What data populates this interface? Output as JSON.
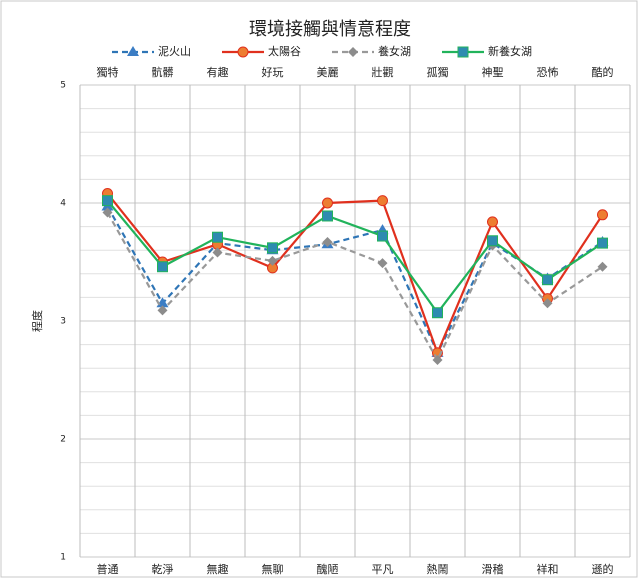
{
  "chart_data": {
    "type": "line",
    "title": "環境接觸與情意程度",
    "y_label": "程度",
    "categories": [
      "普通",
      "乾淨",
      "無趣",
      "無聊",
      "醜陋",
      "平凡",
      "熱鬧",
      "滑稽",
      "祥和",
      "遜的"
    ],
    "top_categories": [
      "獨特",
      "骯髒",
      "有趣",
      "好玩",
      "美麗",
      "壯觀",
      "孤獨",
      "神聖",
      "恐怖",
      "酷的"
    ],
    "ylim": [
      1,
      5
    ],
    "yticks": [
      1,
      2,
      3,
      4,
      5
    ],
    "minor_yticks": [
      1.2,
      1.4,
      1.6,
      1.8,
      2.2,
      2.4,
      2.6,
      2.8,
      3.2,
      3.4,
      3.6,
      3.8,
      4.2,
      4.4,
      4.6,
      4.8
    ],
    "grid": true,
    "series": [
      {
        "name": "泥火山",
        "color": "#2e75b6",
        "dash": true,
        "marker": "triangle",
        "values": [
          3.97,
          3.15,
          3.66,
          3.6,
          3.65,
          3.77,
          2.73,
          3.66,
          3.36,
          3.67
        ]
      },
      {
        "name": "太陽谷",
        "color": "#e0301e",
        "dash": false,
        "marker": "circle",
        "values": [
          4.08,
          3.5,
          3.65,
          3.45,
          4.0,
          4.02,
          2.73,
          3.84,
          3.19,
          3.9
        ]
      },
      {
        "name": "養女湖",
        "color": "#999999",
        "dash": true,
        "marker": "diamond",
        "values": [
          3.92,
          3.09,
          3.58,
          3.51,
          3.67,
          3.49,
          2.67,
          3.64,
          3.15,
          3.46
        ]
      },
      {
        "name": "新養女湖",
        "color": "#21b35b",
        "dash": false,
        "marker": "square",
        "values": [
          4.02,
          3.46,
          3.71,
          3.62,
          3.89,
          3.72,
          3.07,
          3.68,
          3.35,
          3.66
        ]
      }
    ]
  }
}
